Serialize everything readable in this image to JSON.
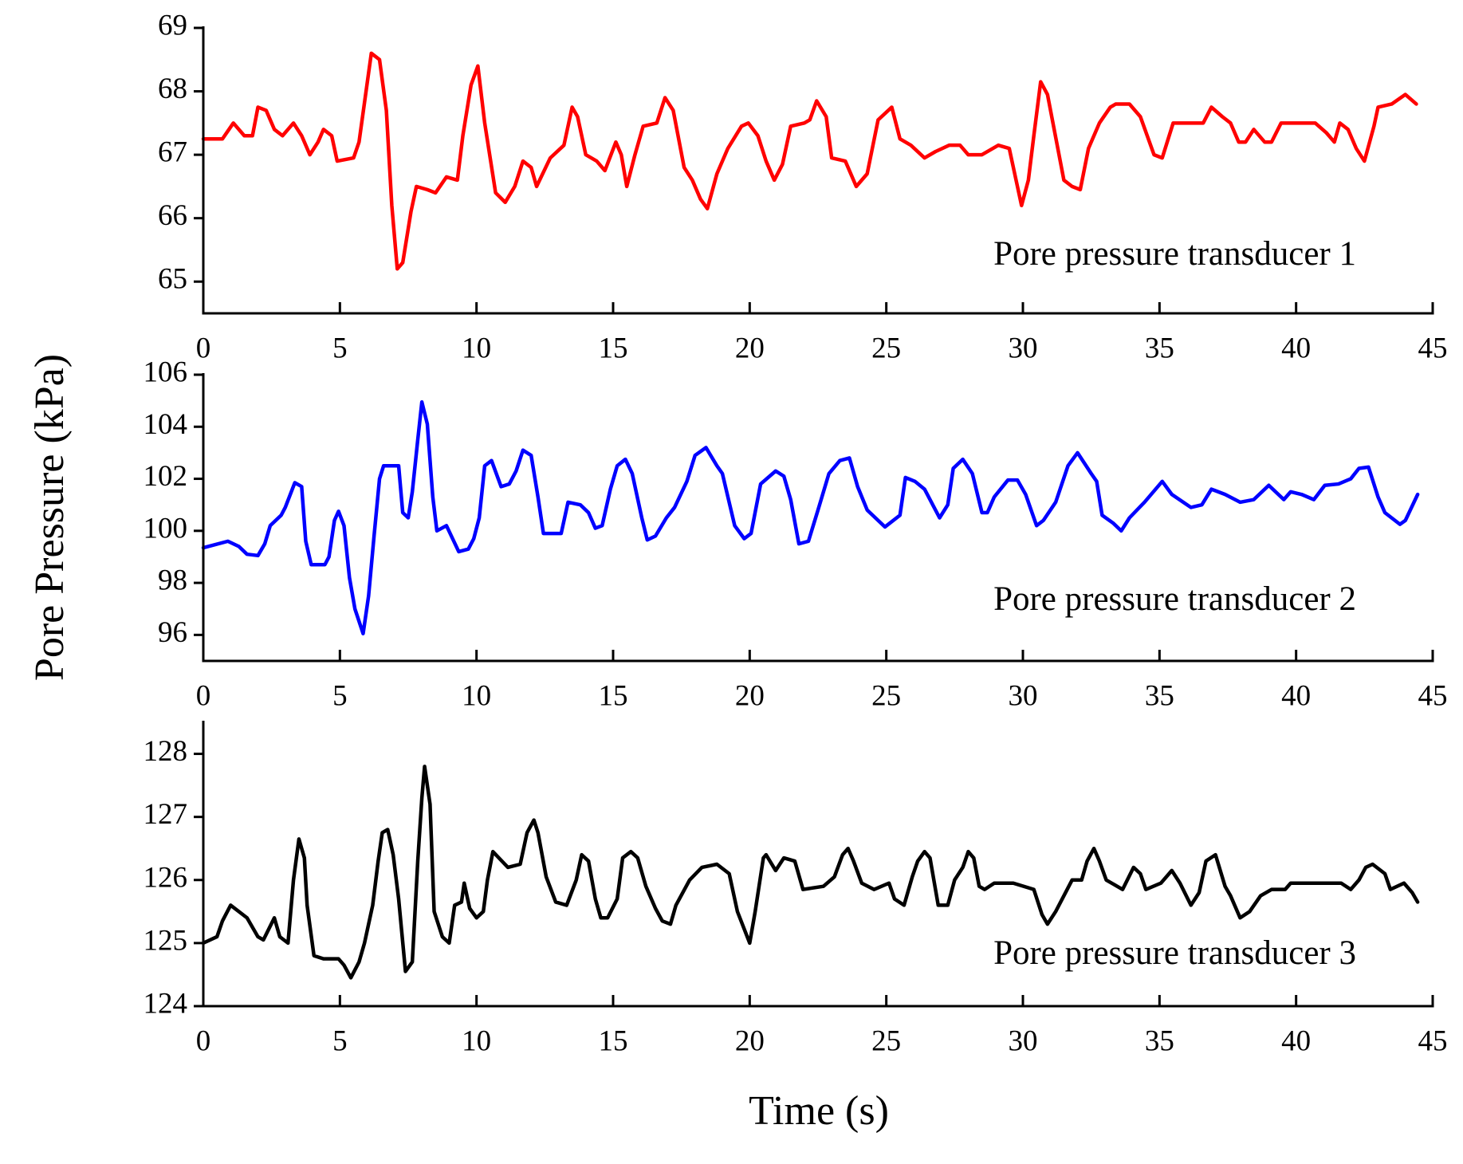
{
  "xlabel": "Time (s)",
  "ylabel": "Pore Pressure (kPa)",
  "chart_data": [
    {
      "type": "line",
      "x": [
        0,
        0.7,
        1.1,
        1.5,
        1.8,
        2.0,
        2.3,
        2.6,
        2.9,
        3.3,
        3.6,
        3.9,
        4.2,
        4.4,
        4.7,
        4.9,
        5.5,
        5.7,
        6.15,
        6.45,
        6.7,
        6.9,
        7.1,
        7.3,
        7.6,
        7.8,
        8.2,
        8.5,
        8.9,
        9.3,
        9.5,
        9.8,
        10.05,
        10.3,
        10.7,
        11.05,
        11.4,
        11.7,
        12.0,
        12.2,
        12.7,
        13.2,
        13.5,
        13.7,
        14.0,
        14.4,
        14.7,
        15.1,
        15.3,
        15.5,
        15.8,
        16.1,
        16.6,
        16.9,
        17.2,
        17.6,
        17.9,
        18.2,
        18.45,
        18.8,
        19.2,
        19.7,
        19.95,
        20.3,
        20.6,
        20.9,
        21.2,
        21.5,
        22.0,
        22.2,
        22.45,
        22.8,
        23.0,
        23.5,
        23.9,
        24.3,
        24.7,
        25.2,
        25.5,
        25.9,
        26.4,
        26.8,
        27.3,
        27.7,
        28.0,
        28.5,
        29.1,
        29.5,
        29.75,
        29.95,
        30.2,
        30.4,
        30.65,
        30.9,
        31.1,
        31.5,
        31.8,
        32.1,
        32.4,
        32.8,
        33.2,
        33.4,
        33.9,
        34.3,
        34.8,
        35.1,
        35.5,
        36.2,
        36.6,
        36.9,
        37.3,
        37.6,
        37.9,
        38.15,
        38.45,
        38.85,
        39.1,
        39.45,
        40.0,
        40.7,
        41.1,
        41.4,
        41.6,
        41.9,
        42.2,
        42.5,
        42.85,
        43.0,
        43.5,
        44.0,
        44.4
      ],
      "series": [
        {
          "name": "Pore pressure transducer 1",
          "color": "#ff0000",
          "values": [
            67.25,
            67.25,
            67.5,
            67.3,
            67.3,
            67.75,
            67.7,
            67.4,
            67.3,
            67.5,
            67.3,
            67.0,
            67.2,
            67.4,
            67.3,
            66.9,
            66.95,
            67.2,
            68.6,
            68.5,
            67.7,
            66.2,
            65.2,
            65.3,
            66.1,
            66.5,
            66.45,
            66.4,
            66.65,
            66.6,
            67.3,
            68.1,
            68.4,
            67.5,
            66.4,
            66.25,
            66.5,
            66.9,
            66.8,
            66.5,
            66.95,
            67.15,
            67.75,
            67.6,
            67.0,
            66.9,
            66.75,
            67.2,
            67.0,
            66.5,
            67.0,
            67.45,
            67.5,
            67.9,
            67.7,
            66.8,
            66.6,
            66.3,
            66.15,
            66.7,
            67.1,
            67.45,
            67.5,
            67.3,
            66.9,
            66.6,
            66.85,
            67.45,
            67.5,
            67.55,
            67.85,
            67.6,
            66.95,
            66.9,
            66.5,
            66.7,
            67.55,
            67.75,
            67.25,
            67.15,
            66.95,
            67.05,
            67.15,
            67.15,
            67.0,
            67.0,
            67.15,
            67.1,
            66.6,
            66.2,
            66.6,
            67.3,
            68.15,
            67.95,
            67.5,
            66.6,
            66.5,
            66.45,
            67.1,
            67.5,
            67.75,
            67.8,
            67.8,
            67.6,
            67.0,
            66.95,
            67.5,
            67.5,
            67.5,
            67.75,
            67.6,
            67.5,
            67.2,
            67.2,
            67.4,
            67.2,
            67.2,
            67.5,
            67.5,
            67.5,
            67.35,
            67.2,
            67.5,
            67.4,
            67.1,
            66.9,
            67.45,
            67.75,
            67.8,
            67.95,
            67.8
          ]
        }
      ],
      "xlim": [
        0,
        45
      ],
      "xticks": [
        0,
        5,
        10,
        15,
        20,
        25,
        30,
        35,
        40,
        45
      ],
      "ylim": [
        64.5,
        69
      ],
      "yticks": [
        65,
        66,
        67,
        68,
        69
      ]
    },
    {
      "type": "line",
      "x": [
        0,
        0.9,
        1.3,
        1.6,
        2.0,
        2.25,
        2.45,
        2.85,
        3.0,
        3.35,
        3.6,
        3.75,
        3.95,
        4.45,
        4.6,
        4.8,
        4.95,
        5.15,
        5.35,
        5.55,
        5.85,
        6.05,
        6.25,
        6.45,
        6.6,
        7.15,
        7.3,
        7.5,
        7.65,
        7.85,
        8.0,
        8.2,
        8.4,
        8.55,
        8.9,
        9.35,
        9.7,
        9.9,
        10.1,
        10.3,
        10.55,
        10.9,
        11.2,
        11.45,
        11.7,
        12.0,
        12.25,
        12.45,
        13.1,
        13.35,
        13.8,
        14.1,
        14.35,
        14.6,
        14.9,
        15.15,
        15.45,
        15.7,
        16.05,
        16.25,
        16.55,
        16.95,
        17.25,
        17.7,
        18.0,
        18.4,
        18.8,
        19.0,
        19.45,
        19.8,
        20.05,
        20.4,
        20.95,
        21.25,
        21.5,
        21.8,
        22.15,
        22.5,
        22.9,
        23.3,
        23.65,
        23.95,
        24.3,
        24.95,
        25.5,
        25.7,
        26.05,
        26.4,
        26.95,
        27.25,
        27.45,
        27.8,
        28.15,
        28.5,
        28.7,
        28.95,
        29.45,
        29.8,
        30.1,
        30.5,
        30.75,
        31.2,
        31.65,
        32.0,
        32.5,
        32.7,
        32.9,
        33.3,
        33.6,
        33.9,
        34.45,
        35.1,
        35.45,
        36.15,
        36.55,
        36.9,
        37.4,
        37.95,
        38.45,
        39.0,
        39.55,
        39.8,
        40.2,
        40.65,
        41.05,
        41.55,
        42.0,
        42.3,
        42.65,
        43.0,
        43.25,
        43.8,
        44.0,
        44.45
      ],
      "series": [
        {
          "name": "Pore pressure transducer 2",
          "color": "#0000ff",
          "values": [
            99.35,
            99.6,
            99.4,
            99.1,
            99.05,
            99.5,
            100.2,
            100.6,
            100.9,
            101.85,
            101.7,
            99.6,
            98.7,
            98.7,
            99.0,
            100.4,
            100.75,
            100.2,
            98.2,
            97.0,
            96.05,
            97.5,
            99.8,
            102.0,
            102.5,
            102.5,
            100.7,
            100.5,
            101.5,
            103.5,
            104.95,
            104.1,
            101.3,
            100.0,
            100.2,
            99.2,
            99.3,
            99.7,
            100.5,
            102.5,
            102.7,
            101.7,
            101.8,
            102.3,
            103.1,
            102.9,
            101.3,
            99.9,
            99.9,
            101.1,
            101.0,
            100.7,
            100.1,
            100.2,
            101.6,
            102.5,
            102.75,
            102.2,
            100.5,
            99.65,
            99.8,
            100.5,
            100.9,
            101.9,
            102.9,
            103.2,
            102.5,
            102.2,
            100.2,
            99.7,
            99.9,
            101.8,
            102.3,
            102.1,
            101.2,
            99.5,
            99.6,
            100.8,
            102.2,
            102.7,
            102.8,
            101.7,
            100.8,
            100.15,
            100.6,
            102.05,
            101.9,
            101.6,
            100.5,
            101.0,
            102.4,
            102.75,
            102.2,
            100.7,
            100.7,
            101.3,
            101.95,
            101.95,
            101.4,
            100.2,
            100.4,
            101.1,
            102.5,
            103.0,
            102.2,
            101.9,
            100.6,
            100.3,
            100.0,
            100.5,
            101.1,
            101.9,
            101.4,
            100.9,
            101.0,
            101.6,
            101.4,
            101.1,
            101.2,
            101.75,
            101.2,
            101.5,
            101.4,
            101.2,
            101.75,
            101.8,
            102.0,
            102.4,
            102.45,
            101.3,
            100.7,
            100.25,
            100.4,
            101.4
          ]
        }
      ],
      "xlim": [
        0,
        45
      ],
      "xticks": [
        0,
        5,
        10,
        15,
        20,
        25,
        30,
        35,
        40,
        45
      ],
      "ylim": [
        95,
        106
      ],
      "yticks": [
        96,
        98,
        100,
        102,
        104,
        106
      ]
    },
    {
      "type": "line",
      "x": [
        0,
        0.5,
        0.7,
        1.0,
        1.6,
        2.0,
        2.2,
        2.6,
        2.8,
        3.1,
        3.3,
        3.5,
        3.7,
        3.8,
        4.05,
        4.4,
        4.95,
        5.15,
        5.4,
        5.7,
        5.9,
        6.2,
        6.4,
        6.55,
        6.75,
        6.95,
        7.15,
        7.4,
        7.65,
        7.85,
        8.0,
        8.1,
        8.3,
        8.45,
        8.75,
        9.0,
        9.2,
        9.45,
        9.55,
        9.75,
        10.0,
        10.25,
        10.4,
        10.6,
        11.15,
        11.6,
        11.85,
        12.1,
        12.25,
        12.55,
        12.9,
        13.3,
        13.65,
        13.85,
        14.1,
        14.35,
        14.55,
        14.8,
        15.15,
        15.35,
        15.65,
        15.9,
        16.2,
        16.55,
        16.8,
        17.1,
        17.3,
        17.8,
        18.25,
        18.8,
        19.25,
        19.55,
        20.0,
        20.2,
        20.5,
        20.6,
        20.95,
        21.25,
        21.65,
        21.95,
        22.7,
        23.1,
        23.4,
        23.6,
        23.8,
        24.1,
        24.55,
        25.1,
        25.3,
        25.65,
        25.95,
        26.15,
        26.4,
        26.6,
        26.9,
        27.25,
        27.5,
        27.8,
        28.0,
        28.2,
        28.4,
        28.6,
        28.95,
        29.65,
        30.4,
        30.7,
        30.9,
        31.2,
        31.5,
        31.8,
        32.15,
        32.35,
        32.6,
        32.8,
        33.05,
        33.45,
        33.65,
        34.05,
        34.3,
        34.5,
        35.05,
        35.45,
        35.75,
        36.15,
        36.45,
        36.7,
        37.05,
        37.4,
        37.6,
        37.95,
        38.3,
        38.7,
        39.1,
        39.6,
        39.8,
        40.9,
        41.65,
        42.0,
        42.3,
        42.55,
        42.8,
        43.25,
        43.45,
        43.95,
        44.25,
        44.45
      ],
      "series": [
        {
          "name": "Pore pressure transducer 3",
          "color": "#000000",
          "values": [
            125.0,
            125.1,
            125.35,
            125.6,
            125.4,
            125.1,
            125.05,
            125.4,
            125.1,
            125.0,
            126.0,
            126.65,
            126.35,
            125.6,
            124.8,
            124.75,
            124.75,
            124.65,
            124.45,
            124.7,
            125.0,
            125.6,
            126.3,
            126.75,
            126.8,
            126.4,
            125.7,
            124.55,
            124.7,
            126.3,
            127.3,
            127.8,
            127.2,
            125.5,
            125.1,
            125.0,
            125.6,
            125.65,
            125.95,
            125.55,
            125.4,
            125.5,
            126.0,
            126.45,
            126.2,
            126.25,
            126.75,
            126.95,
            126.75,
            126.05,
            125.65,
            125.6,
            126.0,
            126.4,
            126.3,
            125.7,
            125.4,
            125.4,
            125.7,
            126.35,
            126.45,
            126.35,
            125.9,
            125.55,
            125.35,
            125.3,
            125.6,
            126.0,
            126.2,
            126.25,
            126.1,
            125.5,
            125.0,
            125.5,
            126.35,
            126.4,
            126.15,
            126.35,
            126.3,
            125.85,
            125.9,
            126.05,
            126.4,
            126.5,
            126.3,
            125.95,
            125.85,
            125.95,
            125.7,
            125.6,
            126.05,
            126.3,
            126.45,
            126.35,
            125.6,
            125.6,
            126.0,
            126.2,
            126.45,
            126.35,
            125.9,
            125.85,
            125.95,
            125.95,
            125.85,
            125.45,
            125.3,
            125.5,
            125.75,
            126.0,
            126.0,
            126.3,
            126.5,
            126.3,
            126.0,
            125.9,
            125.85,
            126.2,
            126.1,
            125.85,
            125.95,
            126.15,
            125.95,
            125.6,
            125.8,
            126.3,
            126.4,
            125.9,
            125.75,
            125.4,
            125.5,
            125.75,
            125.85,
            125.85,
            125.95,
            125.95,
            125.95,
            125.85,
            126.0,
            126.2,
            126.25,
            126.1,
            125.85,
            125.95,
            125.8,
            125.65
          ]
        }
      ],
      "xlim": [
        0,
        45
      ],
      "xticks": [
        0,
        5,
        10,
        15,
        20,
        25,
        30,
        35,
        40,
        45
      ],
      "ylim": [
        124,
        128.5
      ],
      "yticks": [
        124,
        125,
        126,
        127,
        128
      ]
    }
  ]
}
